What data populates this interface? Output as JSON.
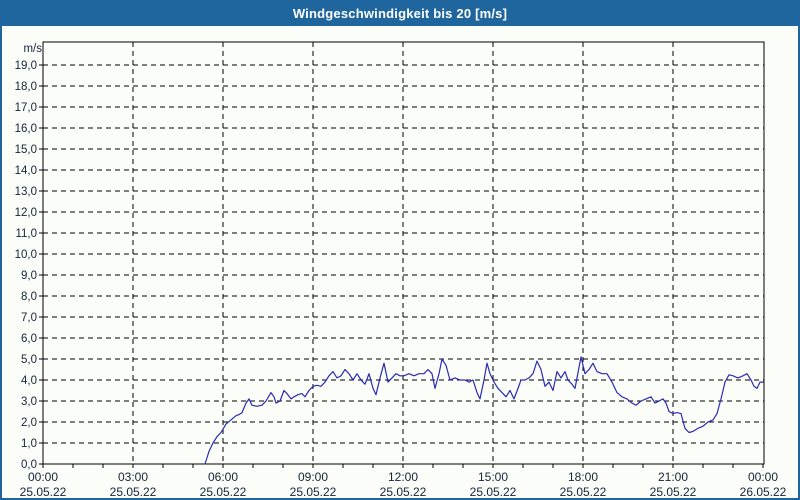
{
  "window": {
    "title": "Windgeschwindigkeit bis 20 [m/s]"
  },
  "colors": {
    "titlebar_bg": "#1f669e",
    "titlebar_text": "#ffffff",
    "window_border": "#1f669e",
    "background": "#fbfdf8",
    "grid": "#000000",
    "axis": "#000000",
    "tick_text": "#16243a",
    "line": "#2b2bb4"
  },
  "chart_data": {
    "type": "line",
    "title": "Windgeschwindigkeit bis 20 [m/s]",
    "ylabel": "m/s",
    "xlabel": "",
    "ylim": [
      0,
      20
    ],
    "grid": true,
    "grid_style": "dashed",
    "legend_position": "none",
    "yticks": [
      "0,0",
      "1,0",
      "2,0",
      "3,0",
      "4,0",
      "5,0",
      "6,0",
      "7,0",
      "8,0",
      "9,0",
      "10,0",
      "11,0",
      "12,0",
      "13,0",
      "14,0",
      "15,0",
      "16,0",
      "17,0",
      "18,0",
      "19,0"
    ],
    "xticks": [
      {
        "minute": 0,
        "time": "00:00",
        "date": "25.05.22"
      },
      {
        "minute": 180,
        "time": "03:00",
        "date": "25.05.22"
      },
      {
        "minute": 360,
        "time": "06:00",
        "date": "25.05.22"
      },
      {
        "minute": 540,
        "time": "09:00",
        "date": "25.05.22"
      },
      {
        "minute": 720,
        "time": "12:00",
        "date": "25.05.22"
      },
      {
        "minute": 900,
        "time": "15:00",
        "date": "25.05.22"
      },
      {
        "minute": 1080,
        "time": "18:00",
        "date": "25.05.22"
      },
      {
        "minute": 1260,
        "time": "21:00",
        "date": "25.05.22"
      },
      {
        "minute": 1440,
        "time": "00:00",
        "date": "26.05.22"
      }
    ],
    "x_range_minutes": [
      0,
      1440
    ],
    "minor_tick_interval_minutes": 60,
    "series": [
      {
        "name": "Windgeschwindigkeit",
        "unit": "m/s",
        "points": [
          [
            324,
            0.0
          ],
          [
            332,
            0.6
          ],
          [
            340,
            1.0
          ],
          [
            348,
            1.3
          ],
          [
            356,
            1.5
          ],
          [
            366,
            1.9
          ],
          [
            376,
            2.1
          ],
          [
            386,
            2.3
          ],
          [
            392,
            2.35
          ],
          [
            398,
            2.45
          ],
          [
            406,
            2.9
          ],
          [
            412,
            3.1
          ],
          [
            418,
            2.8
          ],
          [
            428,
            2.75
          ],
          [
            438,
            2.8
          ],
          [
            446,
            3.0
          ],
          [
            456,
            3.4
          ],
          [
            462,
            3.2
          ],
          [
            466,
            2.9
          ],
          [
            474,
            3.0
          ],
          [
            482,
            3.5
          ],
          [
            488,
            3.35
          ],
          [
            496,
            3.1
          ],
          [
            502,
            3.2
          ],
          [
            510,
            3.3
          ],
          [
            518,
            3.35
          ],
          [
            524,
            3.2
          ],
          [
            532,
            3.5
          ],
          [
            540,
            3.7
          ],
          [
            548,
            3.75
          ],
          [
            556,
            3.7
          ],
          [
            564,
            3.9
          ],
          [
            572,
            4.2
          ],
          [
            580,
            4.4
          ],
          [
            588,
            4.1
          ],
          [
            596,
            4.2
          ],
          [
            604,
            4.5
          ],
          [
            612,
            4.3
          ],
          [
            620,
            4.0
          ],
          [
            628,
            4.3
          ],
          [
            636,
            4.0
          ],
          [
            644,
            3.8
          ],
          [
            652,
            4.3
          ],
          [
            660,
            3.6
          ],
          [
            666,
            3.3
          ],
          [
            674,
            4.1
          ],
          [
            682,
            4.8
          ],
          [
            690,
            3.9
          ],
          [
            698,
            4.1
          ],
          [
            706,
            4.3
          ],
          [
            714,
            4.2
          ],
          [
            722,
            4.2
          ],
          [
            732,
            4.3
          ],
          [
            742,
            4.2
          ],
          [
            752,
            4.3
          ],
          [
            762,
            4.3
          ],
          [
            770,
            4.5
          ],
          [
            778,
            4.3
          ],
          [
            784,
            3.6
          ],
          [
            792,
            4.3
          ],
          [
            798,
            5.0
          ],
          [
            806,
            4.7
          ],
          [
            814,
            4.0
          ],
          [
            824,
            4.1
          ],
          [
            834,
            4.0
          ],
          [
            844,
            4.0
          ],
          [
            852,
            3.9
          ],
          [
            860,
            4.0
          ],
          [
            868,
            3.4
          ],
          [
            874,
            3.1
          ],
          [
            882,
            4.0
          ],
          [
            888,
            4.8
          ],
          [
            894,
            4.3
          ],
          [
            902,
            3.9
          ],
          [
            910,
            3.6
          ],
          [
            918,
            3.4
          ],
          [
            926,
            3.2
          ],
          [
            934,
            3.5
          ],
          [
            942,
            3.1
          ],
          [
            950,
            3.6
          ],
          [
            956,
            4.0
          ],
          [
            964,
            4.0
          ],
          [
            972,
            4.1
          ],
          [
            980,
            4.3
          ],
          [
            988,
            4.9
          ],
          [
            996,
            4.5
          ],
          [
            1004,
            3.7
          ],
          [
            1012,
            3.9
          ],
          [
            1020,
            3.5
          ],
          [
            1028,
            4.4
          ],
          [
            1036,
            4.1
          ],
          [
            1044,
            4.4
          ],
          [
            1050,
            4.0
          ],
          [
            1058,
            3.8
          ],
          [
            1064,
            3.6
          ],
          [
            1072,
            4.6
          ],
          [
            1076,
            5.1
          ],
          [
            1084,
            4.3
          ],
          [
            1092,
            4.5
          ],
          [
            1100,
            4.8
          ],
          [
            1108,
            4.4
          ],
          [
            1118,
            4.3
          ],
          [
            1128,
            4.3
          ],
          [
            1138,
            3.9
          ],
          [
            1148,
            3.4
          ],
          [
            1158,
            3.2
          ],
          [
            1168,
            3.1
          ],
          [
            1178,
            2.9
          ],
          [
            1186,
            2.8
          ],
          [
            1196,
            3.0
          ],
          [
            1206,
            3.1
          ],
          [
            1216,
            3.2
          ],
          [
            1224,
            2.9
          ],
          [
            1232,
            3.0
          ],
          [
            1240,
            3.1
          ],
          [
            1246,
            2.9
          ],
          [
            1252,
            2.5
          ],
          [
            1260,
            2.4
          ],
          [
            1268,
            2.45
          ],
          [
            1276,
            2.4
          ],
          [
            1284,
            1.7
          ],
          [
            1292,
            1.5
          ],
          [
            1300,
            1.55
          ],
          [
            1310,
            1.7
          ],
          [
            1320,
            1.8
          ],
          [
            1330,
            2.0
          ],
          [
            1340,
            2.1
          ],
          [
            1348,
            2.4
          ],
          [
            1356,
            3.1
          ],
          [
            1364,
            3.9
          ],
          [
            1372,
            4.25
          ],
          [
            1380,
            4.2
          ],
          [
            1390,
            4.1
          ],
          [
            1400,
            4.2
          ],
          [
            1408,
            4.3
          ],
          [
            1416,
            4.0
          ],
          [
            1422,
            3.7
          ],
          [
            1428,
            3.6
          ],
          [
            1434,
            3.9
          ],
          [
            1440,
            3.9
          ]
        ]
      }
    ]
  }
}
